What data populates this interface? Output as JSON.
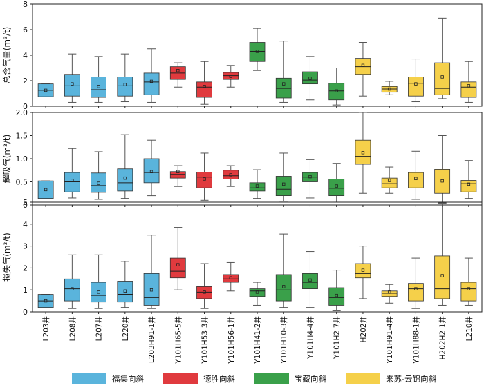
{
  "chart_data": {
    "type": "box",
    "categories": [
      "L203井",
      "L208井",
      "L207井",
      "L220井",
      "L203H91-1井",
      "Y101H65-5井",
      "Y101H53-3井",
      "Y101H56-1井",
      "Y101H41-2井",
      "Y101H10-3井",
      "Y101H4-4井",
      "Y101H2-7井",
      "H202井",
      "Y101H91-4井",
      "Y101H88-1井",
      "H202H2-1井",
      "L210井"
    ],
    "groups": [
      0,
      0,
      0,
      0,
      0,
      1,
      1,
      1,
      2,
      2,
      2,
      2,
      3,
      3,
      3,
      3,
      3
    ],
    "legend": [
      {
        "name": "福集向斜",
        "color": "#5ab4dc"
      },
      {
        "name": "德胜向斜",
        "color": "#e03a3e"
      },
      {
        "name": "宝藏向斜",
        "color": "#3aa04a"
      },
      {
        "name": "来苏-云锦向斜",
        "color": "#f5d04a"
      }
    ],
    "panels": [
      {
        "ylabel": "总含气量(m³/t)",
        "ylim": [
          0,
          8
        ],
        "yticks": [
          "0",
          "2",
          "4",
          "6",
          "8"
        ],
        "yvals": [
          0,
          2,
          4,
          6,
          8
        ],
        "boxes": [
          {
            "min": 0.75,
            "q1": 0.75,
            "med": 1.25,
            "q3": 1.75,
            "max": 1.75,
            "mean": 1.25
          },
          {
            "min": 0.3,
            "q1": 0.8,
            "med": 1.6,
            "q3": 2.5,
            "max": 4.1,
            "mean": 1.75
          },
          {
            "min": 0.3,
            "q1": 0.7,
            "med": 1.3,
            "q3": 2.3,
            "max": 3.9,
            "mean": 1.55
          },
          {
            "min": 0.35,
            "q1": 0.8,
            "med": 1.6,
            "q3": 2.3,
            "max": 4.1,
            "mean": 1.7
          },
          {
            "min": 0.3,
            "q1": 0.9,
            "med": 1.9,
            "q3": 2.6,
            "max": 4.5,
            "mean": 1.95
          },
          {
            "min": 1.5,
            "q1": 2.1,
            "med": 2.6,
            "q3": 3.1,
            "max": 3.4,
            "mean": 2.8
          },
          {
            "min": 0.15,
            "q1": 0.7,
            "med": 1.5,
            "q3": 1.9,
            "max": 3.5,
            "mean": 1.55
          },
          {
            "min": 1.5,
            "q1": 2.1,
            "med": 2.4,
            "q3": 2.65,
            "max": 3.2,
            "mean": 2.35
          },
          {
            "min": 2.8,
            "q1": 3.5,
            "med": 4.3,
            "q3": 5.0,
            "max": 6.1,
            "mean": 4.3
          },
          {
            "min": 0.3,
            "q1": 0.65,
            "med": 1.4,
            "q3": 2.2,
            "max": 5.1,
            "mean": 1.75
          },
          {
            "min": 0.5,
            "q1": 1.75,
            "med": 2.05,
            "q3": 2.7,
            "max": 3.9,
            "mean": 2.2
          },
          {
            "min": 0.1,
            "q1": 0.5,
            "med": 1.2,
            "q3": 1.8,
            "max": 3.0,
            "mean": 1.2
          },
          {
            "min": 0.8,
            "q1": 2.5,
            "med": 3.1,
            "q3": 3.75,
            "max": 5.0,
            "mean": 3.2
          },
          {
            "min": 0.9,
            "q1": 1.1,
            "med": 1.35,
            "q3": 1.55,
            "max": 1.95,
            "mean": 1.35
          },
          {
            "min": 0.35,
            "q1": 0.8,
            "med": 1.8,
            "q3": 2.3,
            "max": 3.7,
            "mean": 1.75
          },
          {
            "min": 0.6,
            "q1": 0.9,
            "med": 1.4,
            "q3": 3.4,
            "max": 6.9,
            "mean": 2.3
          },
          {
            "min": 0.3,
            "q1": 0.7,
            "med": 1.5,
            "q3": 1.9,
            "max": 3.5,
            "mean": 1.6
          }
        ]
      },
      {
        "ylabel": "解吸气(m³/t)",
        "ylim": [
          0,
          2
        ],
        "yticks": [
          "0",
          "0.5",
          "1.0",
          "1.5",
          "2.0"
        ],
        "yvals": [
          0,
          0.5,
          1,
          1.5,
          2
        ],
        "boxes": [
          {
            "min": 0.14,
            "q1": 0.14,
            "med": 0.32,
            "q3": 0.52,
            "max": 0.52,
            "mean": 0.33
          },
          {
            "min": 0.15,
            "q1": 0.28,
            "med": 0.5,
            "q3": 0.7,
            "max": 1.22,
            "mean": 0.53
          },
          {
            "min": 0.12,
            "q1": 0.27,
            "med": 0.42,
            "q3": 0.69,
            "max": 1.15,
            "mean": 0.47
          },
          {
            "min": 0.14,
            "q1": 0.3,
            "med": 0.48,
            "q3": 0.78,
            "max": 1.52,
            "mean": 0.58
          },
          {
            "min": 0.2,
            "q1": 0.48,
            "med": 0.7,
            "q3": 1.0,
            "max": 1.4,
            "mean": 0.72
          },
          {
            "min": 0.4,
            "q1": 0.58,
            "med": 0.66,
            "q3": 0.72,
            "max": 0.85,
            "mean": 0.72
          },
          {
            "min": 0.1,
            "q1": 0.37,
            "med": 0.6,
            "q3": 0.71,
            "max": 1.12,
            "mean": 0.56
          },
          {
            "min": 0.4,
            "q1": 0.56,
            "med": 0.63,
            "q3": 0.75,
            "max": 0.85,
            "mean": 0.65
          },
          {
            "min": 0.14,
            "q1": 0.3,
            "med": 0.37,
            "q3": 0.48,
            "max": 0.76,
            "mean": 0.41
          },
          {
            "min": 0.08,
            "q1": 0.2,
            "med": 0.34,
            "q3": 0.62,
            "max": 1.12,
            "mean": 0.45
          },
          {
            "min": 0.15,
            "q1": 0.5,
            "med": 0.6,
            "q3": 0.7,
            "max": 0.98,
            "mean": 0.61
          },
          {
            "min": 0.06,
            "q1": 0.2,
            "med": 0.36,
            "q3": 0.56,
            "max": 0.9,
            "mean": 0.41
          },
          {
            "min": 0.25,
            "q1": 0.88,
            "med": 1.05,
            "q3": 1.4,
            "max": 2.0,
            "mean": 1.13
          },
          {
            "min": 0.25,
            "q1": 0.37,
            "med": 0.46,
            "q3": 0.58,
            "max": 0.82,
            "mean": 0.53
          },
          {
            "min": 0.12,
            "q1": 0.37,
            "med": 0.56,
            "q3": 0.7,
            "max": 1.16,
            "mean": 0.57
          },
          {
            "min": 0.05,
            "q1": 0.25,
            "med": 0.32,
            "q3": 0.77,
            "max": 1.5,
            "mean": 0.52
          },
          {
            "min": 0.14,
            "q1": 0.28,
            "med": 0.46,
            "q3": 0.53,
            "max": 0.96,
            "mean": 0.45
          }
        ]
      },
      {
        "ylabel": "损失气(m³/t)",
        "ylim": [
          0,
          5
        ],
        "yticks": [
          "0",
          "1",
          "2",
          "3",
          "4",
          "5"
        ],
        "yvals": [
          0,
          1,
          2,
          3,
          4,
          5
        ],
        "boxes": [
          {
            "min": 0.2,
            "q1": 0.2,
            "med": 0.5,
            "q3": 0.8,
            "max": 0.8,
            "mean": 0.5
          },
          {
            "min": 0.15,
            "q1": 0.5,
            "med": 1.05,
            "q3": 1.5,
            "max": 2.6,
            "mean": 1.05
          },
          {
            "min": 0.15,
            "q1": 0.45,
            "med": 0.75,
            "q3": 1.35,
            "max": 2.6,
            "mean": 0.9
          },
          {
            "min": 0.2,
            "q1": 0.45,
            "med": 0.8,
            "q3": 1.4,
            "max": 2.3,
            "mean": 0.95
          },
          {
            "min": 0.15,
            "q1": 0.3,
            "med": 0.65,
            "q3": 1.75,
            "max": 3.5,
            "mean": 1.0
          },
          {
            "min": 1.0,
            "q1": 1.55,
            "med": 1.85,
            "q3": 2.45,
            "max": 3.85,
            "mean": 2.15
          },
          {
            "min": 0.15,
            "q1": 0.6,
            "med": 0.9,
            "q3": 1.15,
            "max": 2.2,
            "mean": 0.9
          },
          {
            "min": 0.95,
            "q1": 1.35,
            "med": 1.5,
            "q3": 1.7,
            "max": 2.25,
            "mean": 1.55
          },
          {
            "min": 0.3,
            "q1": 0.7,
            "med": 0.95,
            "q3": 1.05,
            "max": 1.35,
            "mean": 0.9
          },
          {
            "min": 0.2,
            "q1": 0.5,
            "med": 1.0,
            "q3": 1.7,
            "max": 3.55,
            "mean": 1.15
          },
          {
            "min": 0.2,
            "q1": 1.05,
            "med": 1.35,
            "q3": 1.75,
            "max": 2.75,
            "mean": 1.45
          },
          {
            "min": 0.05,
            "q1": 0.3,
            "med": 0.65,
            "q3": 1.1,
            "max": 1.9,
            "mean": 0.75
          },
          {
            "min": 0.6,
            "q1": 1.55,
            "med": 1.75,
            "q3": 2.2,
            "max": 3.0,
            "mean": 1.9
          },
          {
            "min": 0.4,
            "q1": 0.7,
            "med": 0.85,
            "q3": 0.95,
            "max": 1.25,
            "mean": 0.9
          },
          {
            "min": 0.15,
            "q1": 0.5,
            "med": 1.05,
            "q3": 1.3,
            "max": 2.45,
            "mean": 1.05
          },
          {
            "min": 0.3,
            "q1": 0.6,
            "med": 1.05,
            "q3": 2.55,
            "max": 4.95,
            "mean": 1.65
          },
          {
            "min": 0.3,
            "q1": 0.5,
            "med": 1.05,
            "q3": 1.35,
            "max": 2.45,
            "mean": 1.05
          }
        ]
      }
    ]
  }
}
